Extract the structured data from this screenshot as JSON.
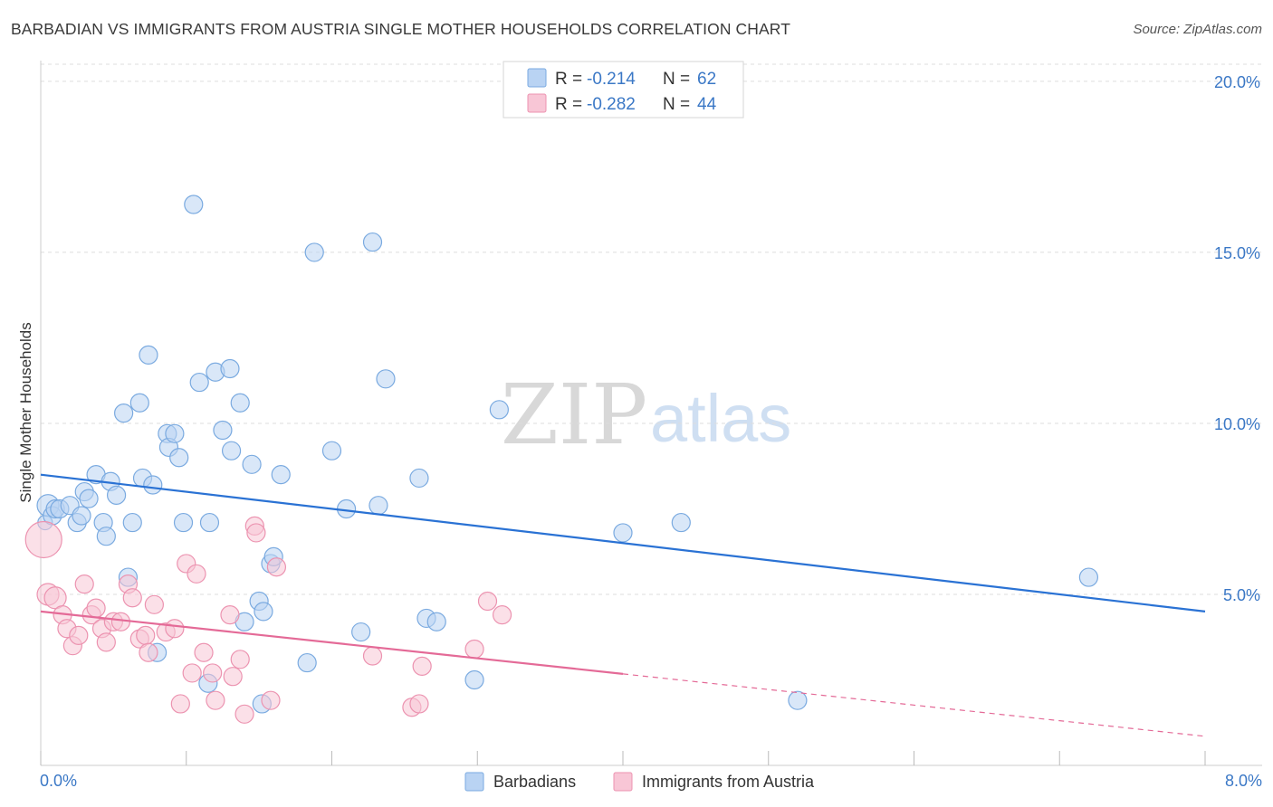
{
  "title": "BARBADIAN VS IMMIGRANTS FROM AUSTRIA SINGLE MOTHER HOUSEHOLDS CORRELATION CHART",
  "source": "Source: ZipAtlas.com",
  "watermark": {
    "part1": "ZIP",
    "part2": "atlas"
  },
  "colors": {
    "blue_fill": "#b9d3f3",
    "blue_stroke": "#7aaae0",
    "blue_line": "#2a72d4",
    "pink_fill": "#f8c6d6",
    "pink_stroke": "#ec93b0",
    "pink_line": "#e46a97",
    "grid": "#dddddd",
    "axis_label": "#3b78c6"
  },
  "legend_stats": [
    {
      "r_label": "R =",
      "r_value": "-0.214",
      "n_label": "N =",
      "n_value": "62"
    },
    {
      "r_label": "R =",
      "r_value": "-0.282",
      "n_label": "N =",
      "n_value": "44"
    }
  ],
  "chart_data": {
    "type": "scatter",
    "title": "BARBADIAN VS IMMIGRANTS FROM AUSTRIA SINGLE MOTHER HOUSEHOLDS CORRELATION CHART",
    "xlabel": "",
    "ylabel": "Single Mother Households",
    "xlim": [
      0,
      8
    ],
    "ylim": [
      0,
      20.5
    ],
    "x_tick_labels": [
      "0.0%",
      "8.0%"
    ],
    "y_ticks": [
      5,
      10,
      15,
      20
    ],
    "y_tick_labels": [
      "5.0%",
      "10.0%",
      "15.0%",
      "20.0%"
    ],
    "grid": true,
    "legend_position": "bottom",
    "series": [
      {
        "name": "Barbadians",
        "color": "blue",
        "trend": {
          "x0": 0,
          "y0": 8.5,
          "x1": 8,
          "y1": 4.5,
          "dashed_from": null
        },
        "points": [
          [
            0.03,
            7.1,
            8
          ],
          [
            0.05,
            7.6,
            12
          ],
          [
            0.08,
            7.3,
            10
          ],
          [
            0.1,
            7.5,
            10
          ],
          [
            0.13,
            7.5,
            10
          ],
          [
            0.2,
            7.6,
            10
          ],
          [
            0.25,
            7.1,
            10
          ],
          [
            0.28,
            7.3,
            10
          ],
          [
            0.3,
            8.0,
            10
          ],
          [
            0.33,
            7.8,
            10
          ],
          [
            0.38,
            8.5,
            10
          ],
          [
            0.43,
            7.1,
            10
          ],
          [
            0.45,
            6.7,
            10
          ],
          [
            0.48,
            8.3,
            10
          ],
          [
            0.52,
            7.9,
            10
          ],
          [
            0.57,
            10.3,
            10
          ],
          [
            0.6,
            5.5,
            10
          ],
          [
            0.63,
            7.1,
            10
          ],
          [
            0.68,
            10.6,
            10
          ],
          [
            0.7,
            8.4,
            10
          ],
          [
            0.74,
            12.0,
            10
          ],
          [
            0.77,
            8.2,
            10
          ],
          [
            0.8,
            3.3,
            10
          ],
          [
            0.87,
            9.7,
            10
          ],
          [
            0.88,
            9.3,
            10
          ],
          [
            0.92,
            9.7,
            10
          ],
          [
            0.95,
            9.0,
            10
          ],
          [
            0.98,
            7.1,
            10
          ],
          [
            1.05,
            16.4,
            10
          ],
          [
            1.09,
            11.2,
            10
          ],
          [
            1.15,
            2.4,
            10
          ],
          [
            1.16,
            7.1,
            10
          ],
          [
            1.2,
            11.5,
            10
          ],
          [
            1.25,
            9.8,
            10
          ],
          [
            1.3,
            11.6,
            10
          ],
          [
            1.31,
            9.2,
            10
          ],
          [
            1.37,
            10.6,
            10
          ],
          [
            1.4,
            4.2,
            10
          ],
          [
            1.45,
            8.8,
            10
          ],
          [
            1.5,
            4.8,
            10
          ],
          [
            1.52,
            1.8,
            10
          ],
          [
            1.53,
            4.5,
            10
          ],
          [
            1.58,
            5.9,
            10
          ],
          [
            1.6,
            6.1,
            10
          ],
          [
            1.65,
            8.5,
            10
          ],
          [
            1.83,
            3.0,
            10
          ],
          [
            1.88,
            15.0,
            10
          ],
          [
            2.0,
            9.2,
            10
          ],
          [
            2.1,
            7.5,
            10
          ],
          [
            2.2,
            3.9,
            10
          ],
          [
            2.28,
            15.3,
            10
          ],
          [
            2.32,
            7.6,
            10
          ],
          [
            2.37,
            11.3,
            10
          ],
          [
            2.6,
            8.4,
            10
          ],
          [
            2.65,
            4.3,
            10
          ],
          [
            2.72,
            4.2,
            10
          ],
          [
            2.98,
            2.5,
            10
          ],
          [
            3.15,
            10.4,
            10
          ],
          [
            4.0,
            6.8,
            10
          ],
          [
            4.4,
            7.1,
            10
          ],
          [
            5.2,
            1.9,
            10
          ],
          [
            7.2,
            5.5,
            10
          ]
        ]
      },
      {
        "name": "Immigrants from Austria",
        "color": "pink",
        "trend": {
          "x0": 0,
          "y0": 4.5,
          "x1": 8,
          "y1": 0.85,
          "dashed_from": 4.0
        },
        "points": [
          [
            0.02,
            6.6,
            20
          ],
          [
            0.05,
            5.0,
            12
          ],
          [
            0.1,
            4.9,
            12
          ],
          [
            0.15,
            4.4,
            10
          ],
          [
            0.18,
            4.0,
            10
          ],
          [
            0.22,
            3.5,
            10
          ],
          [
            0.26,
            3.8,
            10
          ],
          [
            0.3,
            5.3,
            10
          ],
          [
            0.35,
            4.4,
            10
          ],
          [
            0.38,
            4.6,
            10
          ],
          [
            0.42,
            4.0,
            10
          ],
          [
            0.45,
            3.6,
            10
          ],
          [
            0.5,
            4.2,
            10
          ],
          [
            0.55,
            4.2,
            10
          ],
          [
            0.6,
            5.3,
            10
          ],
          [
            0.63,
            4.9,
            10
          ],
          [
            0.68,
            3.7,
            10
          ],
          [
            0.72,
            3.8,
            10
          ],
          [
            0.74,
            3.3,
            10
          ],
          [
            0.78,
            4.7,
            10
          ],
          [
            0.86,
            3.9,
            10
          ],
          [
            0.92,
            4.0,
            10
          ],
          [
            0.96,
            1.8,
            10
          ],
          [
            1.0,
            5.9,
            10
          ],
          [
            1.04,
            2.7,
            10
          ],
          [
            1.07,
            5.6,
            10
          ],
          [
            1.12,
            3.3,
            10
          ],
          [
            1.18,
            2.7,
            10
          ],
          [
            1.2,
            1.9,
            10
          ],
          [
            1.3,
            4.4,
            10
          ],
          [
            1.32,
            2.6,
            10
          ],
          [
            1.37,
            3.1,
            10
          ],
          [
            1.4,
            1.5,
            10
          ],
          [
            1.47,
            7.0,
            10
          ],
          [
            1.48,
            6.8,
            10
          ],
          [
            1.58,
            1.9,
            10
          ],
          [
            1.62,
            5.8,
            10
          ],
          [
            2.28,
            3.2,
            10
          ],
          [
            2.55,
            1.7,
            10
          ],
          [
            2.6,
            1.8,
            10
          ],
          [
            2.62,
            2.9,
            10
          ],
          [
            2.98,
            3.4,
            10
          ],
          [
            3.07,
            4.8,
            10
          ],
          [
            3.17,
            4.4,
            10
          ]
        ]
      }
    ]
  }
}
